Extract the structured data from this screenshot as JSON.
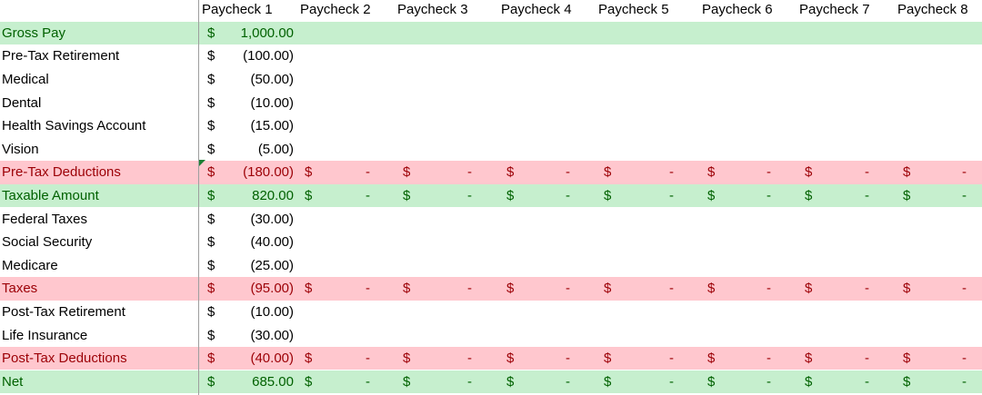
{
  "headers": [
    "Paycheck 1",
    "Paycheck 2",
    "Paycheck 3",
    "Paycheck 4",
    "Paycheck 5",
    "Paycheck 6",
    "Paycheck 7",
    "Paycheck 8"
  ],
  "currency_symbol": "$",
  "dash": "-",
  "rows": [
    {
      "label": "Gross Pay",
      "style": "green",
      "p1": "1,000.00",
      "others": false
    },
    {
      "label": "Pre-Tax Retirement",
      "style": "plain",
      "p1": "(100.00)",
      "others": false
    },
    {
      "label": "Medical",
      "style": "plain",
      "p1": "(50.00)",
      "others": false
    },
    {
      "label": "Dental",
      "style": "plain",
      "p1": "(10.00)",
      "others": false
    },
    {
      "label": "Health Savings Account",
      "style": "plain",
      "p1": "(15.00)",
      "others": false
    },
    {
      "label": "Vision",
      "style": "plain",
      "p1": "(5.00)",
      "others": false
    },
    {
      "label": "Pre-Tax Deductions",
      "style": "red",
      "p1": "(180.00)",
      "others": true
    },
    {
      "label": "Taxable Amount",
      "style": "green",
      "p1": "820.00",
      "others": true
    },
    {
      "label": "Federal Taxes",
      "style": "plain",
      "p1": "(30.00)",
      "others": false
    },
    {
      "label": "Social Security",
      "style": "plain",
      "p1": "(40.00)",
      "others": false
    },
    {
      "label": "Medicare",
      "style": "plain",
      "p1": "(25.00)",
      "others": false
    },
    {
      "label": "Taxes",
      "style": "red",
      "p1": "(95.00)",
      "others": true
    },
    {
      "label": "Post-Tax Retirement",
      "style": "plain",
      "p1": "(10.00)",
      "others": false
    },
    {
      "label": "Life Insurance",
      "style": "plain",
      "p1": "(30.00)",
      "others": false
    },
    {
      "label": "Post-Tax Deductions",
      "style": "red",
      "p1": "(40.00)",
      "others": true
    },
    {
      "label": "Net",
      "style": "green",
      "p1": "685.00",
      "others": true
    }
  ]
}
